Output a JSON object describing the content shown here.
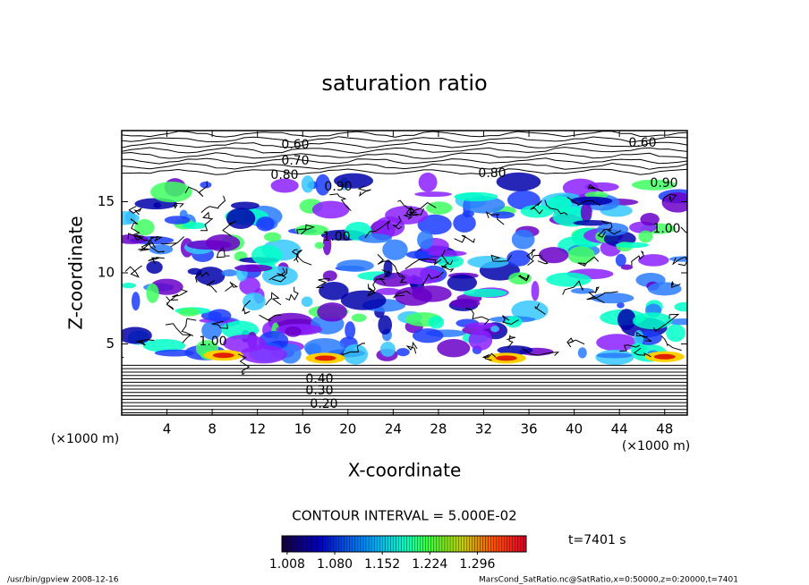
{
  "chart_data": {
    "type": "contour",
    "title": "saturation ratio",
    "xlabel": "X-coordinate",
    "ylabel": "Z-coordinate",
    "x_unit_label": "(×1000 m)",
    "y_unit_label": "(×1000 m)",
    "xlim": [
      0,
      50
    ],
    "ylim": [
      0,
      20
    ],
    "xticks": [
      4,
      8,
      12,
      16,
      20,
      24,
      28,
      32,
      36,
      40,
      44,
      48
    ],
    "yticks": [
      5,
      10,
      15
    ],
    "contour_labels": [
      "0.60",
      "0.70",
      "0.80",
      "0.90",
      "1.00",
      "0.60",
      "0.80",
      "0.90",
      "1.00",
      "1.00",
      "0.20",
      "0.30",
      "0.40"
    ],
    "contour_interval_label": "CONTOUR INTERVAL = 5.000E-02",
    "clim": [
      1.0,
      1.37
    ],
    "cticks": [
      {
        "value": 1.008,
        "label": "1.008"
      },
      {
        "value": 1.08,
        "label": "1.080"
      },
      {
        "value": 1.152,
        "label": "1.152"
      },
      {
        "value": 1.224,
        "label": "1.224"
      },
      {
        "value": 1.296,
        "label": "1.296"
      }
    ],
    "time_label": "t=7401 s",
    "footer_left": "/usr/bin/gpview   2008-12-16",
    "footer_right": "MarsCond_SatRatio.nc@SatRatio,x=0:50000,z=0:20000,t=7401"
  }
}
